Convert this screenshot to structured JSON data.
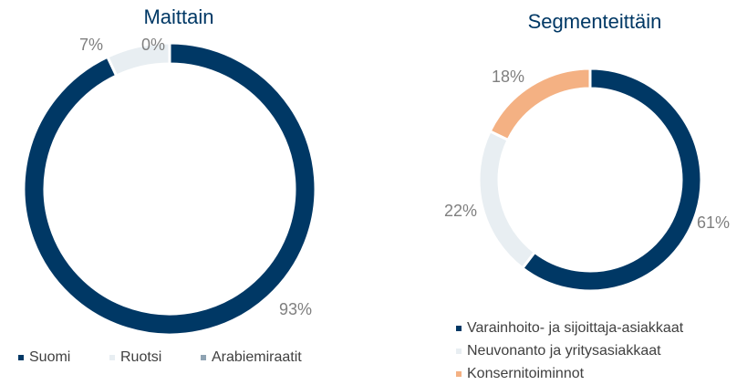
{
  "chart_data": [
    {
      "type": "pie",
      "title": "Maittain",
      "categories": [
        "Suomi",
        "Ruotsi",
        "Arabiemiraatit"
      ],
      "values": [
        93,
        7,
        0
      ],
      "value_labels": [
        "93%",
        "7%",
        "0%"
      ],
      "colors": [
        "#003865",
        "#e8eef2",
        "#8fa3b3"
      ],
      "legend": "bottom"
    },
    {
      "type": "pie",
      "title": "Segmenteittäin",
      "categories": [
        "Varainhoito- ja sijoittaja-asiakkaat",
        "Neuvonanto ja yritysasiakkaat",
        "Konsernitoiminnot"
      ],
      "values": [
        61,
        22,
        18
      ],
      "value_labels": [
        "61%",
        "22%",
        "18%"
      ],
      "colors": [
        "#003865",
        "#e8eef2",
        "#f4b183"
      ],
      "legend": "bottom"
    }
  ]
}
